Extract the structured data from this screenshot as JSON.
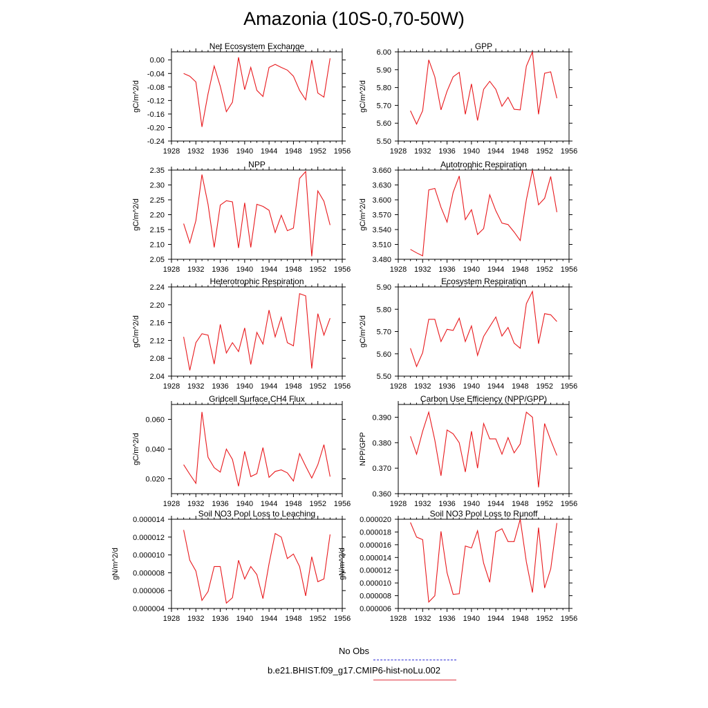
{
  "title": "Amazonia (10S-0,70-50W)",
  "legend": {
    "items": [
      {
        "label": "No Obs",
        "color": "#2b2bd6",
        "style": "dashed"
      },
      {
        "label": "b.e21.BHIST.f09_g17.CMIP6-hist-noLu.002",
        "color": "#e0343f",
        "style": "solid"
      }
    ]
  },
  "colors": {
    "series_line": "#e8181c"
  },
  "chart_data": [
    {
      "type": "line",
      "title": "Net Ecosystem Exchange",
      "ylabel": "gC/m^2/d",
      "xlim": [
        1928,
        1956
      ],
      "ylim": [
        -0.24,
        0.024
      ],
      "xticks": [
        "1928",
        "1932",
        "1936",
        "1940",
        "1944",
        "1948",
        "1952",
        "1956"
      ],
      "yticks": [
        "-0.24",
        "-0.20",
        "-0.16",
        "-0.12",
        "-0.08",
        "-0.04",
        "0.00"
      ],
      "x": [
        1930,
        1931,
        1932,
        1933,
        1934,
        1935,
        1936,
        1937,
        1938,
        1939,
        1940,
        1941,
        1942,
        1943,
        1944,
        1945,
        1946,
        1947,
        1948,
        1949,
        1950,
        1951,
        1952,
        1953,
        1954
      ],
      "values": [
        -0.04,
        -0.048,
        -0.065,
        -0.198,
        -0.1,
        -0.018,
        -0.078,
        -0.153,
        -0.125,
        0.008,
        -0.088,
        -0.022,
        -0.09,
        -0.108,
        -0.022,
        -0.013,
        -0.022,
        -0.03,
        -0.048,
        -0.09,
        -0.118,
        0.0,
        -0.098,
        -0.11,
        0.005
      ]
    },
    {
      "type": "line",
      "title": "GPP",
      "ylabel": "gC/m^2/d",
      "xlim": [
        1928,
        1956
      ],
      "ylim": [
        5.5,
        6.0
      ],
      "xticks": [
        "1928",
        "1932",
        "1936",
        "1940",
        "1944",
        "1948",
        "1952",
        "1956"
      ],
      "yticks": [
        "5.50",
        "5.60",
        "5.70",
        "5.80",
        "5.90",
        "6.00"
      ],
      "x": [
        1930,
        1931,
        1932,
        1933,
        1934,
        1935,
        1936,
        1937,
        1938,
        1939,
        1940,
        1941,
        1942,
        1943,
        1944,
        1945,
        1946,
        1947,
        1948,
        1949,
        1950,
        1951,
        1952,
        1953,
        1954
      ],
      "values": [
        5.67,
        5.595,
        5.67,
        5.955,
        5.86,
        5.675,
        5.78,
        5.86,
        5.885,
        5.65,
        5.82,
        5.615,
        5.79,
        5.835,
        5.79,
        5.695,
        5.745,
        5.678,
        5.675,
        5.92,
        6.0,
        5.65,
        5.88,
        5.888,
        5.74
      ]
    },
    {
      "type": "line",
      "title": "NPP",
      "ylabel": "gC/m^2/d",
      "xlim": [
        1928,
        1956
      ],
      "ylim": [
        2.05,
        2.35
      ],
      "xticks": [
        "1928",
        "1932",
        "1936",
        "1940",
        "1944",
        "1948",
        "1952",
        "1956"
      ],
      "yticks": [
        "2.05",
        "2.10",
        "2.15",
        "2.20",
        "2.25",
        "2.30",
        "2.35"
      ],
      "x": [
        1930,
        1931,
        1932,
        1933,
        1934,
        1935,
        1936,
        1937,
        1938,
        1939,
        1940,
        1941,
        1942,
        1943,
        1944,
        1945,
        1946,
        1947,
        1948,
        1949,
        1950,
        1951,
        1952,
        1953,
        1954
      ],
      "values": [
        2.17,
        2.105,
        2.18,
        2.335,
        2.235,
        2.09,
        2.232,
        2.247,
        2.243,
        2.088,
        2.24,
        2.09,
        2.235,
        2.228,
        2.215,
        2.14,
        2.198,
        2.146,
        2.155,
        2.322,
        2.345,
        2.06,
        2.28,
        2.245,
        2.165
      ]
    },
    {
      "type": "line",
      "title": "Autotrophic Respiration",
      "ylabel": "gC/m^2/d",
      "xlim": [
        1928,
        1956
      ],
      "ylim": [
        3.48,
        3.66
      ],
      "xticks": [
        "1928",
        "1932",
        "1936",
        "1940",
        "1944",
        "1948",
        "1952",
        "1956"
      ],
      "yticks": [
        "3.480",
        "3.510",
        "3.540",
        "3.570",
        "3.600",
        "3.630",
        "3.660"
      ],
      "x": [
        1930,
        1931,
        1932,
        1933,
        1934,
        1935,
        1936,
        1937,
        1938,
        1939,
        1940,
        1941,
        1942,
        1943,
        1944,
        1945,
        1946,
        1947,
        1948,
        1949,
        1950,
        1951,
        1952,
        1953,
        1954
      ],
      "values": [
        3.5,
        3.493,
        3.487,
        3.62,
        3.623,
        3.585,
        3.555,
        3.615,
        3.648,
        3.56,
        3.58,
        3.53,
        3.542,
        3.61,
        3.578,
        3.553,
        3.55,
        3.535,
        3.518,
        3.6,
        3.66,
        3.59,
        3.603,
        3.647,
        3.575
      ]
    },
    {
      "type": "line",
      "title": "Heterotrophic Respiration",
      "ylabel": "gC/m^2/d",
      "xlim": [
        1928,
        1956
      ],
      "ylim": [
        2.04,
        2.24
      ],
      "xticks": [
        "1928",
        "1932",
        "1936",
        "1940",
        "1944",
        "1948",
        "1952",
        "1956"
      ],
      "yticks": [
        "2.04",
        "2.08",
        "2.12",
        "2.16",
        "2.20",
        "2.24"
      ],
      "x": [
        1930,
        1931,
        1932,
        1933,
        1934,
        1935,
        1936,
        1937,
        1938,
        1939,
        1940,
        1941,
        1942,
        1943,
        1944,
        1945,
        1946,
        1947,
        1948,
        1949,
        1950,
        1951,
        1952,
        1953,
        1954
      ],
      "values": [
        2.128,
        2.053,
        2.115,
        2.135,
        2.132,
        2.067,
        2.156,
        2.092,
        2.115,
        2.095,
        2.148,
        2.066,
        2.138,
        2.112,
        2.188,
        2.128,
        2.172,
        2.115,
        2.108,
        2.225,
        2.22,
        2.057,
        2.18,
        2.132,
        2.17
      ]
    },
    {
      "type": "line",
      "title": "Ecosystem Respiration",
      "ylabel": "gC/m^2/d",
      "xlim": [
        1928,
        1956
      ],
      "ylim": [
        5.5,
        5.9
      ],
      "xticks": [
        "1928",
        "1932",
        "1936",
        "1940",
        "1944",
        "1948",
        "1952",
        "1956"
      ],
      "yticks": [
        "5.50",
        "5.60",
        "5.70",
        "5.80",
        "5.90"
      ],
      "x": [
        1930,
        1931,
        1932,
        1933,
        1934,
        1935,
        1936,
        1937,
        1938,
        1939,
        1940,
        1941,
        1942,
        1943,
        1944,
        1945,
        1946,
        1947,
        1948,
        1949,
        1950,
        1951,
        1952,
        1953,
        1954
      ],
      "values": [
        5.625,
        5.543,
        5.605,
        5.755,
        5.755,
        5.655,
        5.71,
        5.705,
        5.76,
        5.655,
        5.725,
        5.593,
        5.678,
        5.722,
        5.765,
        5.68,
        5.718,
        5.648,
        5.625,
        5.825,
        5.88,
        5.645,
        5.78,
        5.775,
        5.745
      ]
    },
    {
      "type": "line",
      "title": "Gridcell Surface CH4 Flux",
      "ylabel": "gC/m^2/d",
      "xlim": [
        1928,
        1956
      ],
      "ylim": [
        0.01,
        0.07
      ],
      "xticks": [
        "1928",
        "1932",
        "1936",
        "1940",
        "1944",
        "1948",
        "1952",
        "1956"
      ],
      "yticks": [
        "0.020",
        "0.040",
        "0.060"
      ],
      "x": [
        1930,
        1931,
        1932,
        1933,
        1934,
        1935,
        1936,
        1937,
        1938,
        1939,
        1940,
        1941,
        1942,
        1943,
        1944,
        1945,
        1946,
        1947,
        1948,
        1949,
        1950,
        1951,
        1952,
        1953,
        1954
      ],
      "values": [
        0.0295,
        0.023,
        0.017,
        0.065,
        0.0345,
        0.0275,
        0.0245,
        0.04,
        0.033,
        0.015,
        0.0385,
        0.0215,
        0.0235,
        0.041,
        0.021,
        0.025,
        0.026,
        0.024,
        0.0185,
        0.037,
        0.0285,
        0.0205,
        0.0295,
        0.043,
        0.0215
      ]
    },
    {
      "type": "line",
      "title": "Carbon Use Efficiency (NPP/GPP)",
      "ylabel": "NPP/GPP",
      "xlim": [
        1928,
        1956
      ],
      "ylim": [
        0.36,
        0.395
      ],
      "xticks": [
        "1928",
        "1932",
        "1936",
        "1940",
        "1944",
        "1948",
        "1952",
        "1956"
      ],
      "yticks": [
        "0.360",
        "0.370",
        "0.380",
        "0.390"
      ],
      "x": [
        1930,
        1931,
        1932,
        1933,
        1934,
        1935,
        1936,
        1937,
        1938,
        1939,
        1940,
        1941,
        1942,
        1943,
        1944,
        1945,
        1946,
        1947,
        1948,
        1949,
        1950,
        1951,
        1952,
        1953,
        1954
      ],
      "values": [
        0.3825,
        0.3755,
        0.3845,
        0.392,
        0.381,
        0.367,
        0.385,
        0.3835,
        0.38,
        0.3685,
        0.3845,
        0.37,
        0.3875,
        0.3815,
        0.3815,
        0.3755,
        0.382,
        0.376,
        0.3795,
        0.392,
        0.39,
        0.3625,
        0.3875,
        0.381,
        0.375
      ]
    },
    {
      "type": "line",
      "title": "Soil NO3 Pool Loss to Leaching",
      "ylabel": "gN/m^2/d",
      "xlim": [
        1928,
        1956
      ],
      "ylim": [
        4e-06,
        1.4e-05
      ],
      "xticks": [
        "1928",
        "1932",
        "1936",
        "1940",
        "1944",
        "1948",
        "1952",
        "1956"
      ],
      "yticks": [
        "0.000004",
        "0.000006",
        "0.000008",
        "0.000010",
        "0.000012",
        "0.000014"
      ],
      "x": [
        1930,
        1931,
        1932,
        1933,
        1934,
        1935,
        1936,
        1937,
        1938,
        1939,
        1940,
        1941,
        1942,
        1943,
        1944,
        1945,
        1946,
        1947,
        1948,
        1949,
        1950,
        1951,
        1952,
        1953,
        1954
      ],
      "values": [
        1.28e-05,
        9.4e-06,
        8.2e-06,
        4.9e-06,
        5.9e-06,
        8.7e-06,
        8.7e-06,
        4.6e-06,
        5.2e-06,
        9.4e-06,
        7.3e-06,
        8.7e-06,
        7.8e-06,
        5.1e-06,
        9e-06,
        1.24e-05,
        1.2e-05,
        9.6e-06,
        1.01e-05,
        8.7e-06,
        5.4e-06,
        9.8e-06,
        7e-06,
        7.3e-06,
        1.23e-05
      ]
    },
    {
      "type": "line",
      "title": "Soil NO3 Pool Loss to Runoff",
      "ylabel": "gN/m^2/d",
      "xlim": [
        1928,
        1956
      ],
      "ylim": [
        6e-06,
        2e-05
      ],
      "xticks": [
        "1928",
        "1932",
        "1936",
        "1940",
        "1944",
        "1948",
        "1952",
        "1956"
      ],
      "yticks": [
        "0.000006",
        "0.000008",
        "0.000010",
        "0.000012",
        "0.000014",
        "0.000016",
        "0.000018",
        "0.000020"
      ],
      "x": [
        1930,
        1931,
        1932,
        1933,
        1934,
        1935,
        1936,
        1937,
        1938,
        1939,
        1940,
        1941,
        1942,
        1943,
        1944,
        1945,
        1946,
        1947,
        1948,
        1949,
        1950,
        1951,
        1952,
        1953,
        1954
      ],
      "values": [
        1.95e-05,
        1.72e-05,
        1.68e-05,
        7e-06,
        8e-06,
        1.81e-05,
        1.16e-05,
        8.2e-06,
        8.3e-06,
        1.58e-05,
        1.55e-05,
        1.82e-05,
        1.31e-05,
        1.01e-05,
        1.8e-05,
        1.85e-05,
        1.65e-05,
        1.65e-05,
        2e-05,
        1.33e-05,
        8.5e-06,
        1.87e-05,
        9.2e-06,
        1.22e-05,
        1.94e-05
      ]
    }
  ]
}
